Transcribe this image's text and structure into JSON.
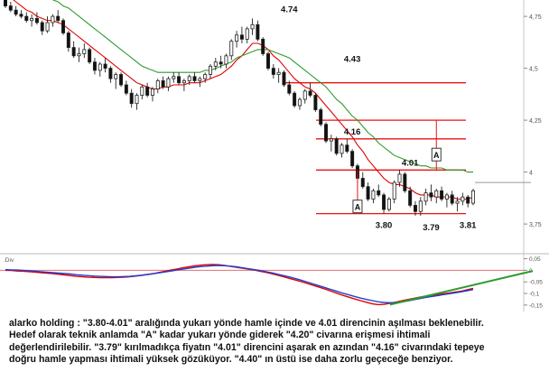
{
  "chart_data": [
    {
      "type": "candlestick",
      "y_axis": {
        "ticks": [
          "4,75",
          "4,5",
          "4,25",
          "4",
          "3,75"
        ],
        "tick_values": [
          4.75,
          4.5,
          4.25,
          4.0,
          3.75
        ],
        "range": [
          3.62,
          4.82
        ]
      },
      "series": [
        {
          "name": "",
          "kind": "candles",
          "values": [
            [
              4.83,
              4.85,
              4.79,
              4.8
            ],
            [
              4.8,
              4.82,
              4.77,
              4.78
            ],
            [
              4.78,
              4.8,
              4.75,
              4.76
            ],
            [
              4.76,
              4.78,
              4.74,
              4.75
            ],
            [
              4.75,
              4.77,
              4.72,
              4.73
            ],
            [
              4.73,
              4.76,
              4.7,
              4.74
            ],
            [
              4.74,
              4.77,
              4.71,
              4.72
            ],
            [
              4.72,
              4.73,
              4.66,
              4.68
            ],
            [
              4.68,
              4.75,
              4.67,
              4.72
            ],
            [
              4.72,
              4.76,
              4.7,
              4.75
            ],
            [
              4.75,
              4.78,
              4.72,
              4.73
            ],
            [
              4.73,
              4.74,
              4.66,
              4.67
            ],
            [
              4.67,
              4.68,
              4.58,
              4.6
            ],
            [
              4.6,
              4.63,
              4.55,
              4.56
            ],
            [
              4.56,
              4.6,
              4.53,
              4.57
            ],
            [
              4.57,
              4.62,
              4.55,
              4.59
            ],
            [
              4.59,
              4.6,
              4.52,
              4.53
            ],
            [
              4.53,
              4.55,
              4.47,
              4.49
            ],
            [
              4.49,
              4.53,
              4.46,
              4.52
            ],
            [
              4.52,
              4.55,
              4.48,
              4.5
            ],
            [
              4.5,
              4.51,
              4.43,
              4.45
            ],
            [
              4.45,
              4.48,
              4.4,
              4.47
            ],
            [
              4.47,
              4.48,
              4.41,
              4.42
            ],
            [
              4.42,
              4.44,
              4.37,
              4.38
            ],
            [
              4.38,
              4.4,
              4.31,
              4.33
            ],
            [
              4.33,
              4.38,
              4.3,
              4.37
            ],
            [
              4.37,
              4.42,
              4.35,
              4.41
            ],
            [
              4.41,
              4.43,
              4.36,
              4.37
            ],
            [
              4.37,
              4.41,
              4.34,
              4.4
            ],
            [
              4.4,
              4.45,
              4.38,
              4.44
            ],
            [
              4.44,
              4.46,
              4.4,
              4.41
            ],
            [
              4.41,
              4.46,
              4.39,
              4.45
            ],
            [
              4.45,
              4.48,
              4.43,
              4.46
            ],
            [
              4.46,
              4.48,
              4.42,
              4.43
            ],
            [
              4.43,
              4.45,
              4.39,
              4.44
            ],
            [
              4.44,
              4.47,
              4.42,
              4.46
            ],
            [
              4.46,
              4.48,
              4.43,
              4.44
            ],
            [
              4.44,
              4.46,
              4.41,
              4.45
            ],
            [
              4.45,
              4.48,
              4.43,
              4.47
            ],
            [
              4.47,
              4.52,
              4.45,
              4.51
            ],
            [
              4.51,
              4.55,
              4.49,
              4.53
            ],
            [
              4.53,
              4.56,
              4.5,
              4.52
            ],
            [
              4.52,
              4.57,
              4.5,
              4.56
            ],
            [
              4.56,
              4.64,
              4.54,
              4.63
            ],
            [
              4.63,
              4.68,
              4.6,
              4.66
            ],
            [
              4.66,
              4.7,
              4.62,
              4.64
            ],
            [
              4.64,
              4.7,
              4.62,
              4.69
            ],
            [
              4.69,
              4.74,
              4.66,
              4.71
            ],
            [
              4.71,
              4.73,
              4.63,
              4.64
            ],
            [
              4.64,
              4.65,
              4.56,
              4.57
            ],
            [
              4.57,
              4.58,
              4.49,
              4.5
            ],
            [
              4.5,
              4.52,
              4.45,
              4.47
            ],
            [
              4.47,
              4.5,
              4.43,
              4.48
            ],
            [
              4.48,
              4.49,
              4.41,
              4.42
            ],
            [
              4.42,
              4.44,
              4.37,
              4.38
            ],
            [
              4.38,
              4.39,
              4.31,
              4.32
            ],
            [
              4.32,
              4.36,
              4.3,
              4.35
            ],
            [
              4.35,
              4.4,
              4.33,
              4.39
            ],
            [
              4.39,
              4.43,
              4.36,
              4.37
            ],
            [
              4.37,
              4.38,
              4.29,
              4.3
            ],
            [
              4.3,
              4.31,
              4.22,
              4.23
            ],
            [
              4.23,
              4.24,
              4.14,
              4.15
            ],
            [
              4.15,
              4.18,
              4.1,
              4.16
            ],
            [
              4.16,
              4.17,
              4.08,
              4.09
            ],
            [
              4.09,
              4.14,
              4.07,
              4.13
            ],
            [
              4.13,
              4.16,
              4.09,
              4.1
            ],
            [
              4.1,
              4.11,
              4.02,
              4.03
            ],
            [
              4.03,
              4.04,
              3.95,
              3.97
            ],
            [
              3.97,
              4.0,
              3.92,
              3.93
            ],
            [
              3.93,
              3.95,
              3.86,
              3.87
            ],
            [
              3.87,
              3.92,
              3.85,
              3.91
            ],
            [
              3.91,
              3.94,
              3.88,
              3.89
            ],
            [
              3.89,
              3.9,
              3.8,
              3.82
            ],
            [
              3.82,
              3.88,
              3.81,
              3.87
            ],
            [
              3.87,
              3.96,
              3.85,
              3.95
            ],
            [
              3.95,
              4.01,
              3.93,
              3.99
            ],
            [
              3.99,
              4.0,
              3.9,
              3.91
            ],
            [
              3.91,
              3.93,
              3.83,
              3.84
            ],
            [
              3.84,
              3.86,
              3.79,
              3.81
            ],
            [
              3.81,
              3.88,
              3.79,
              3.86
            ],
            [
              3.86,
              3.92,
              3.84,
              3.9
            ],
            [
              3.9,
              3.94,
              3.86,
              3.88
            ],
            [
              3.88,
              3.92,
              3.85,
              3.91
            ],
            [
              3.91,
              3.93,
              3.86,
              3.87
            ],
            [
              3.87,
              3.9,
              3.83,
              3.89
            ],
            [
              3.89,
              3.91,
              3.84,
              3.85
            ],
            [
              3.85,
              3.88,
              3.81,
              3.86
            ],
            [
              3.86,
              3.9,
              3.84,
              3.88
            ],
            [
              3.88,
              3.89,
              3.83,
              3.85
            ],
            [
              3.85,
              3.92,
              3.84,
              3.91
            ]
          ]
        },
        {
          "name": "",
          "kind": "line",
          "color": "#e00000",
          "values": [
            4.86,
            4.84,
            4.82,
            4.8,
            4.78,
            4.77,
            4.75,
            4.74,
            4.73,
            4.73,
            4.72,
            4.71,
            4.69,
            4.67,
            4.65,
            4.63,
            4.61,
            4.59,
            4.57,
            4.55,
            4.53,
            4.51,
            4.49,
            4.47,
            4.45,
            4.43,
            4.42,
            4.41,
            4.4,
            4.4,
            4.41,
            4.41,
            4.42,
            4.42,
            4.42,
            4.43,
            4.43,
            4.43,
            4.44,
            4.45,
            4.46,
            4.47,
            4.49,
            4.51,
            4.54,
            4.56,
            4.59,
            4.62,
            4.62,
            4.61,
            4.59,
            4.56,
            4.54,
            4.51,
            4.48,
            4.45,
            4.43,
            4.41,
            4.4,
            4.38,
            4.35,
            4.32,
            4.29,
            4.26,
            4.23,
            4.2,
            4.17,
            4.13,
            4.1,
            4.06,
            4.03,
            4.0,
            3.97,
            3.95,
            3.94,
            3.94,
            3.93,
            3.92,
            3.9,
            3.89,
            3.89,
            3.89,
            3.88,
            3.88,
            3.88,
            3.88,
            3.87,
            3.87,
            3.87,
            3.88
          ]
        },
        {
          "name": "",
          "kind": "line",
          "color": "#2e9a2e",
          "values": [
            4.92,
            4.91,
            4.9,
            4.89,
            4.88,
            4.87,
            4.86,
            4.85,
            4.84,
            4.83,
            4.82,
            4.8,
            4.79,
            4.77,
            4.75,
            4.73,
            4.71,
            4.69,
            4.67,
            4.65,
            4.63,
            4.61,
            4.59,
            4.57,
            4.55,
            4.53,
            4.51,
            4.5,
            4.49,
            4.48,
            4.48,
            4.48,
            4.48,
            4.48,
            4.48,
            4.48,
            4.48,
            4.48,
            4.49,
            4.49,
            4.5,
            4.51,
            4.52,
            4.53,
            4.55,
            4.56,
            4.57,
            4.58,
            4.59,
            4.59,
            4.59,
            4.58,
            4.57,
            4.56,
            4.55,
            4.53,
            4.51,
            4.49,
            4.47,
            4.45,
            4.43,
            4.41,
            4.38,
            4.35,
            4.33,
            4.3,
            4.27,
            4.25,
            4.22,
            4.19,
            4.17,
            4.14,
            4.12,
            4.1,
            4.08,
            4.07,
            4.06,
            4.05,
            4.04,
            4.03,
            4.03,
            4.02,
            4.02,
            4.02,
            4.01,
            4.01,
            4.01,
            4.01,
            4.0,
            4.0
          ]
        }
      ],
      "horizontal_lines": [
        4.43,
        4.25,
        4.16,
        4.01,
        3.8
      ],
      "price_marker": 3.95,
      "annotations": [
        {
          "text": "4.74",
          "x": 54,
          "y": 4.77
        },
        {
          "text": "4.43",
          "x": 66,
          "y": 4.53
        },
        {
          "text": "4.16",
          "x": 66,
          "y": 4.18
        },
        {
          "text": "4.01",
          "x": 77,
          "y": 4.03
        },
        {
          "text": "3.80",
          "x": 72,
          "y": 3.73
        },
        {
          "text": "3.79",
          "x": 81,
          "y": 3.72
        },
        {
          "text": "3.81",
          "x": 88,
          "y": 3.73
        },
        {
          "text": "A",
          "x": 67,
          "y": 3.83,
          "boxed": true,
          "range": [
            3.8,
            4.01
          ]
        },
        {
          "text": "A",
          "x": 82,
          "y": 4.08,
          "boxed": true,
          "range": [
            4.01,
            4.25
          ]
        }
      ]
    },
    {
      "type": "line",
      "title": "Div",
      "y_axis": {
        "ticks": [
          "0,05",
          "0",
          "-0,05",
          "-0,1",
          "-0,15"
        ],
        "tick_values": [
          0.05,
          0,
          -0.05,
          -0.1,
          -0.15
        ],
        "range": [
          -0.17,
          0.06
        ]
      },
      "series": [
        {
          "name": "",
          "color": "#e00000",
          "values": [
            0.0,
            -0.001,
            -0.003,
            -0.004,
            -0.006,
            -0.008,
            -0.01,
            -0.012,
            -0.014,
            -0.017,
            -0.02,
            -0.023,
            -0.026,
            -0.028,
            -0.03,
            -0.031,
            -0.032,
            -0.032,
            -0.032,
            -0.031,
            -0.03,
            -0.028,
            -0.025,
            -0.022,
            -0.018,
            -0.014,
            -0.009,
            -0.004,
            0.001,
            0.006,
            0.011,
            0.015,
            0.019,
            0.022,
            0.024,
            0.025,
            0.024,
            0.021,
            0.017,
            0.013,
            0.009,
            0.005,
            0.001,
            -0.004,
            -0.009,
            -0.015,
            -0.021,
            -0.028,
            -0.035,
            -0.042,
            -0.049,
            -0.057,
            -0.065,
            -0.073,
            -0.081,
            -0.09,
            -0.099,
            -0.108,
            -0.116,
            -0.124,
            -0.131,
            -0.138,
            -0.145,
            -0.148,
            -0.147,
            -0.142,
            -0.137,
            -0.131,
            -0.126,
            -0.121,
            -0.116,
            -0.112,
            -0.108,
            -0.105,
            -0.101,
            -0.098,
            -0.094,
            -0.09,
            -0.084,
            -0.078
          ]
        },
        {
          "name": "",
          "color": "#1f3fd0",
          "values": [
            0.003,
            0.002,
            0.001,
            0.0,
            -0.002,
            -0.004,
            -0.006,
            -0.008,
            -0.01,
            -0.012,
            -0.014,
            -0.016,
            -0.019,
            -0.021,
            -0.023,
            -0.025,
            -0.026,
            -0.027,
            -0.028,
            -0.028,
            -0.027,
            -0.026,
            -0.024,
            -0.021,
            -0.018,
            -0.015,
            -0.011,
            -0.007,
            -0.003,
            0.001,
            0.005,
            0.009,
            0.013,
            0.016,
            0.018,
            0.02,
            0.021,
            0.02,
            0.018,
            0.015,
            0.011,
            0.007,
            0.003,
            -0.001,
            -0.006,
            -0.011,
            -0.017,
            -0.023,
            -0.029,
            -0.036,
            -0.043,
            -0.051,
            -0.059,
            -0.067,
            -0.075,
            -0.083,
            -0.091,
            -0.099,
            -0.106,
            -0.113,
            -0.12,
            -0.126,
            -0.131,
            -0.136,
            -0.139,
            -0.14,
            -0.139,
            -0.136,
            -0.132,
            -0.127,
            -0.122,
            -0.117,
            -0.113,
            -0.109,
            -0.105,
            -0.101,
            -0.097,
            -0.093,
            -0.088,
            -0.083
          ]
        }
      ],
      "zero_line_color": "#e07070",
      "trendline_color": "#2e9a2e"
    }
  ],
  "commentary": {
    "line1": "alarko holding : \"3.80-4.01\" aralığında yukarı yönde hamle içinde ve 4.01 direncinin aşılması beklenebilir.",
    "line2": "Hedef olarak teknik anlamda \"A\" kadar yukarı yönde giderek \"4.20\" civarına erişmesi ihtimali",
    "line3": "değerlendirilebilir. \"3.79\" kırılmadıkça fiyatın \"4.01\" direncini aşarak en azından \"4.16\" civarındaki tepeye",
    "line4": "doğru hamle yapması ihtimali yüksek gözüküyor. \"4.40\" ın üstü ise daha zorlu geçeceğe benziyor."
  }
}
